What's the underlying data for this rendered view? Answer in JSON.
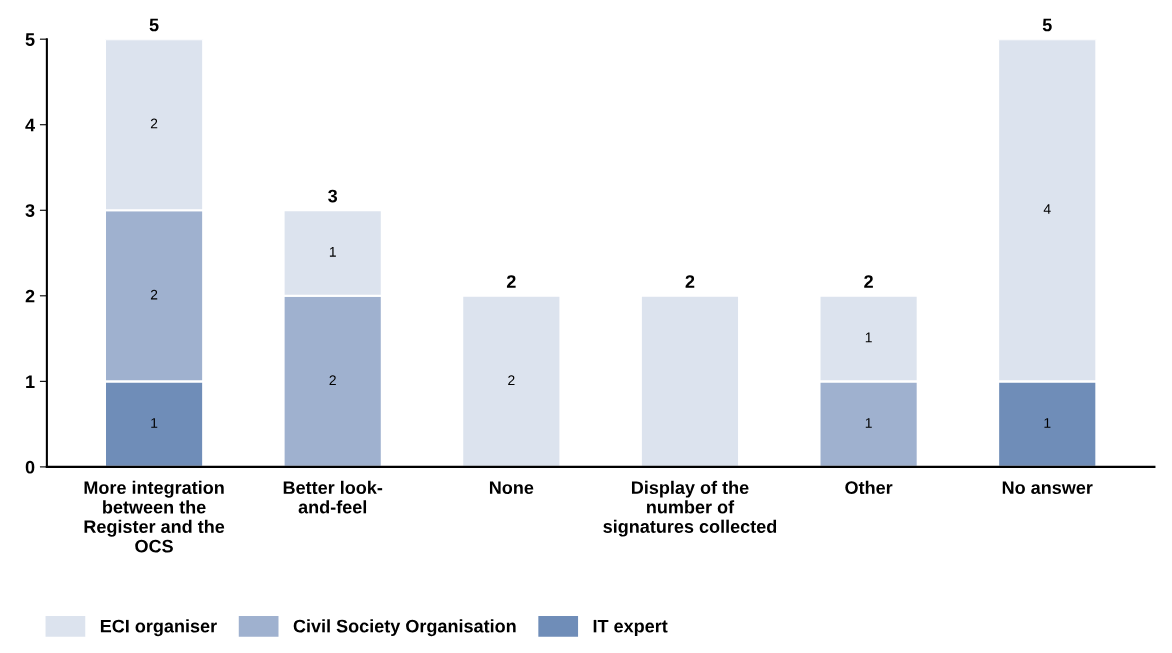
{
  "chart_data": {
    "type": "bar",
    "stacked": true,
    "categories": [
      "More integration\nbetween the\nRegister and the\nOCS",
      "Better look-\nand-feel",
      "None",
      "Display of the\nnumber of\nsignatures collected",
      "Other",
      "No answer"
    ],
    "series": [
      {
        "name": "IT expert",
        "color": "#6f8db8",
        "values": [
          1,
          null,
          null,
          null,
          null,
          1
        ],
        "value_labels": [
          "1",
          null,
          null,
          null,
          null,
          "1"
        ]
      },
      {
        "name": "Civil Society Organisation",
        "color": "#9fb1cf",
        "values": [
          2,
          2,
          null,
          null,
          1,
          null
        ],
        "value_labels": [
          "2",
          "2",
          null,
          null,
          "1",
          null
        ]
      },
      {
        "name": "ECI organiser",
        "color": "#dce3ee",
        "values": [
          2,
          1,
          2,
          2,
          1,
          4
        ],
        "value_labels": [
          "2",
          "1",
          "2",
          null,
          "1",
          "4"
        ]
      }
    ],
    "totals": [
      "5",
      "3",
      "2",
      "2",
      "2",
      "5"
    ],
    "ylim": [
      0,
      5
    ],
    "yticks": [
      0,
      1,
      2,
      3,
      4,
      5
    ],
    "grid": false,
    "legend": "bottom left"
  }
}
